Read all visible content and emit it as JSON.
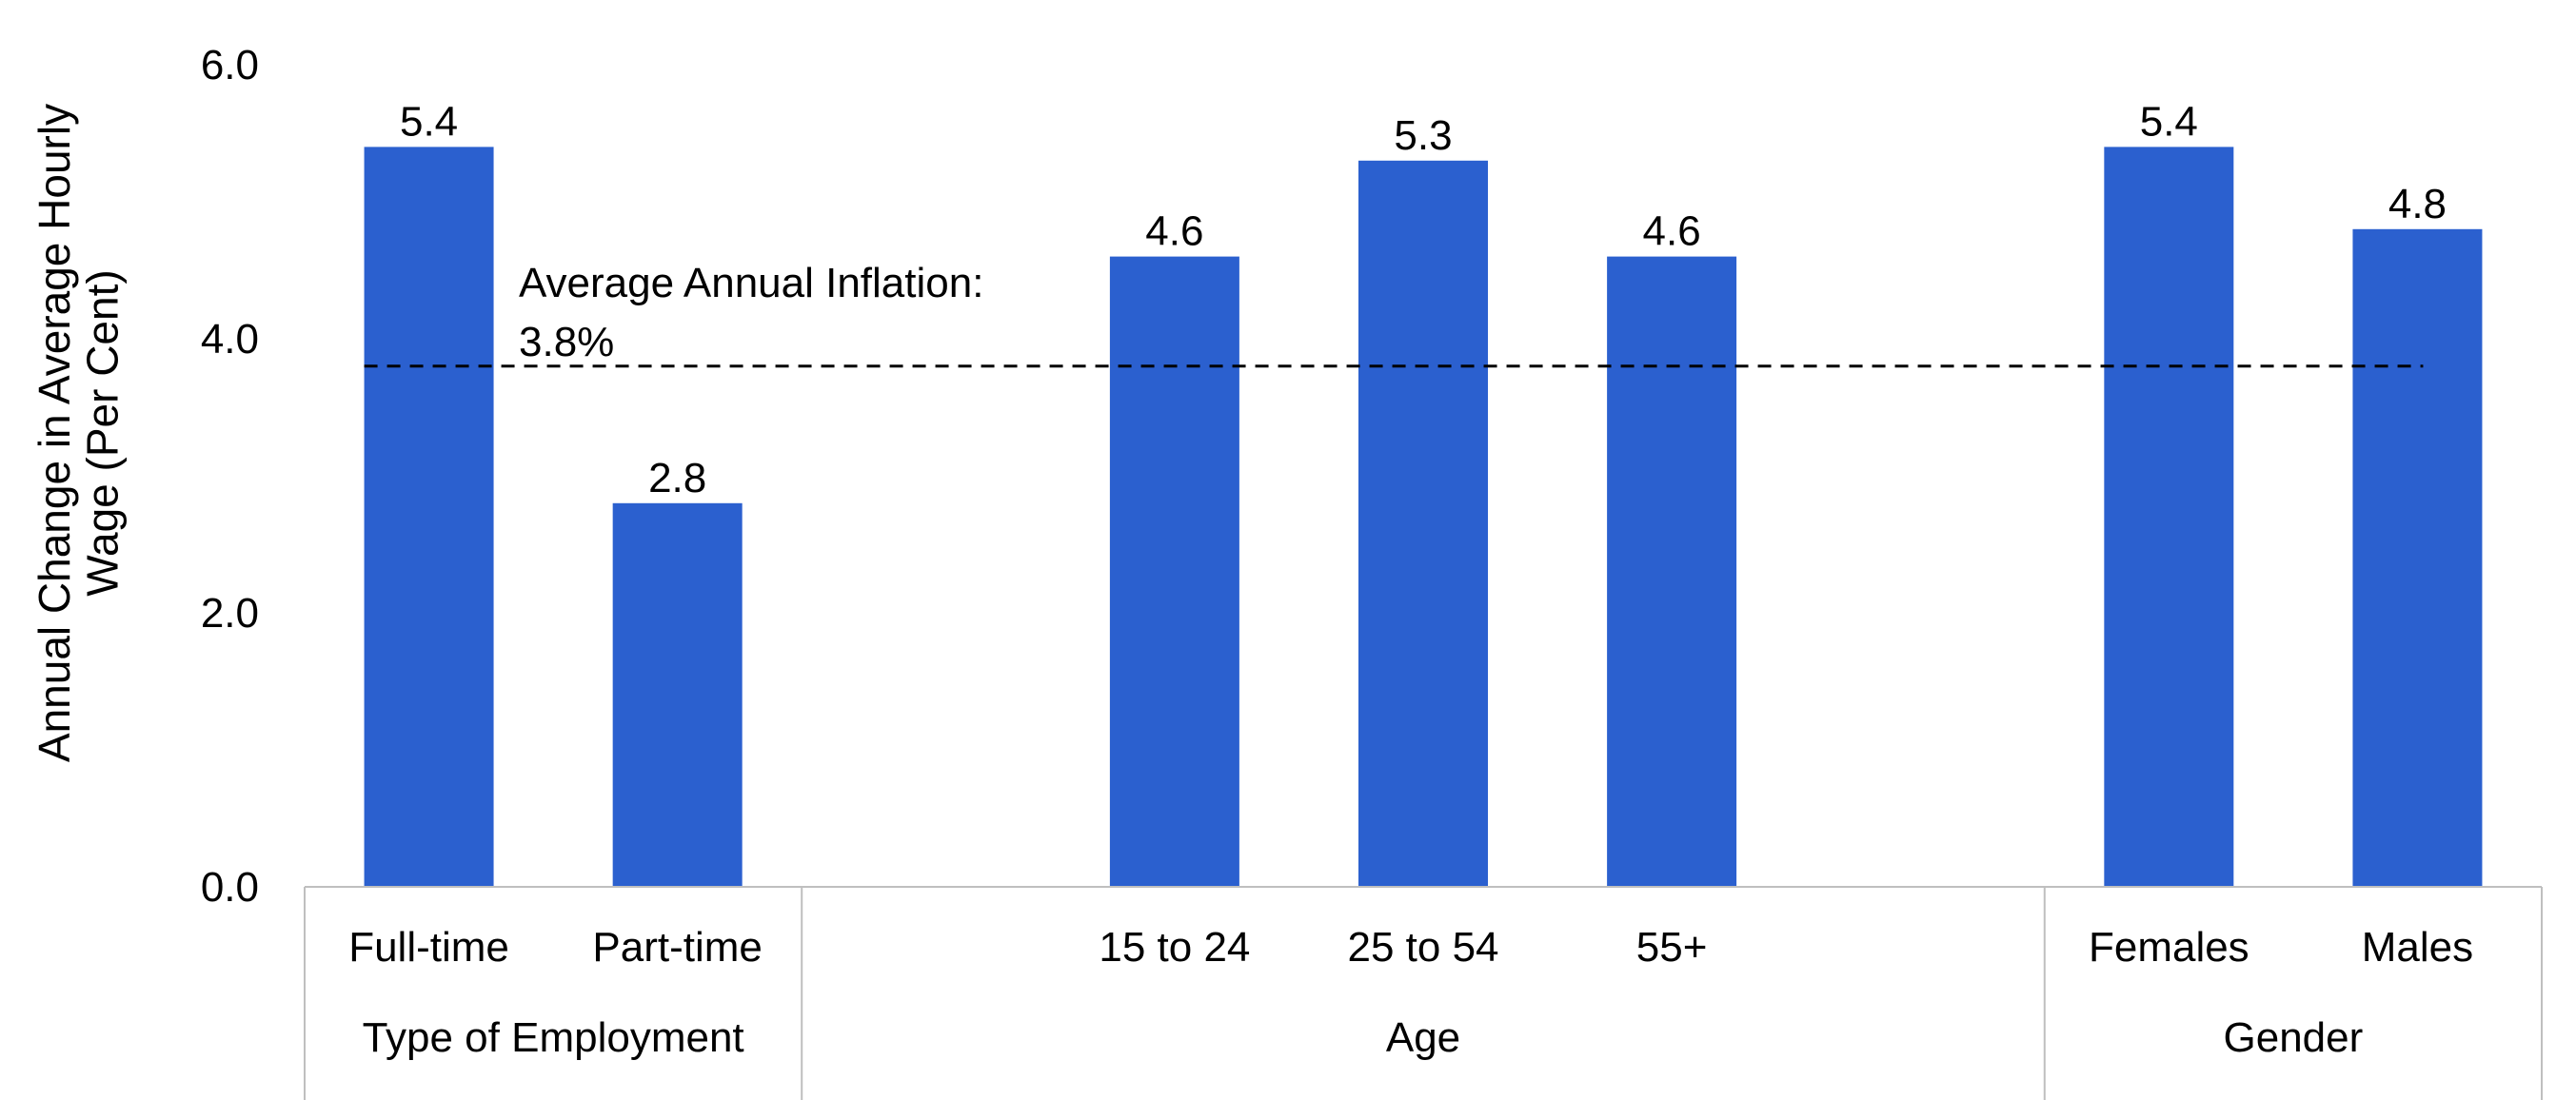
{
  "chart_data": {
    "type": "bar",
    "ylabel_lines": [
      "Annual Change in Average Hourly",
      "Wage (Per Cent)"
    ],
    "ylim": [
      0,
      6
    ],
    "yticks": [
      0,
      2,
      4,
      6
    ],
    "ytick_labels": [
      "0.0",
      "2.0",
      "4.0",
      "6.0"
    ],
    "grid": false,
    "bar_color": "#2b60cf",
    "reference_line": {
      "value": 3.8,
      "style": "dashed",
      "color": "#000000",
      "label_lines": [
        "Average Annual Inflation:",
        "3.8%"
      ]
    },
    "groups": [
      {
        "name": "Type of Employment",
        "categories": [
          "Full-time",
          "Part-time"
        ],
        "values": [
          5.4,
          2.8
        ],
        "value_labels": [
          "5.4",
          "2.8"
        ]
      },
      {
        "name": "Age",
        "categories": [
          "15 to 24",
          "25 to 54",
          "55+"
        ],
        "values": [
          4.6,
          5.3,
          4.6
        ],
        "value_labels": [
          "4.6",
          "5.3",
          "4.6"
        ]
      },
      {
        "name": "Gender",
        "categories": [
          "Females",
          "Males"
        ],
        "values": [
          5.4,
          4.8
        ],
        "value_labels": [
          "5.4",
          "4.8"
        ]
      }
    ]
  }
}
